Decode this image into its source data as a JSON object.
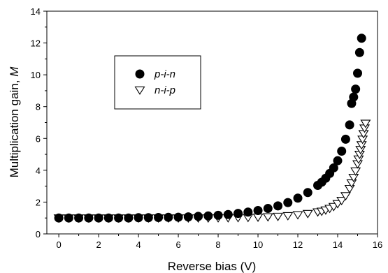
{
  "chart_data": {
    "type": "scatter",
    "title": "",
    "xlabel": "Reverse bias (V)",
    "ylabel_main": "Multiplication gain, ",
    "ylabel_symbol": "M",
    "xlim": [
      -0.6,
      16
    ],
    "ylim": [
      0,
      14
    ],
    "xticks": [
      "0",
      "2",
      "4",
      "6",
      "8",
      "10",
      "12",
      "14",
      "16"
    ],
    "yticks": [
      "0",
      "2",
      "4",
      "6",
      "8",
      "10",
      "12",
      "14"
    ],
    "grid": false,
    "legend_position": "upper-left",
    "series": [
      {
        "name": "p-i-n",
        "marker": "filled-circle",
        "color": "#000000",
        "x": [
          0,
          0.5,
          1,
          1.5,
          2,
          2.5,
          3,
          3.5,
          4,
          4.5,
          5,
          5.5,
          6,
          6.5,
          7,
          7.5,
          8,
          8.5,
          9,
          9.5,
          10,
          10.5,
          11,
          11.5,
          12,
          12.5,
          13,
          13.2,
          13.4,
          13.6,
          13.8,
          14,
          14.2,
          14.4,
          14.6,
          14.7,
          14.8,
          14.9,
          15,
          15.1,
          15.2
        ],
        "y": [
          1.0,
          1.0,
          1.0,
          1.0,
          1.0,
          1.0,
          1.0,
          1.0,
          1.02,
          1.02,
          1.03,
          1.04,
          1.05,
          1.07,
          1.1,
          1.13,
          1.17,
          1.22,
          1.29,
          1.37,
          1.47,
          1.6,
          1.76,
          1.97,
          2.25,
          2.6,
          3.05,
          3.25,
          3.5,
          3.8,
          4.15,
          4.6,
          5.2,
          5.95,
          6.85,
          8.2,
          8.6,
          9.1,
          10.1,
          11.4,
          12.3
        ]
      },
      {
        "name": "n-i-p",
        "marker": "open-triangle-down",
        "color": "#000000",
        "x": [
          0,
          0.5,
          1,
          1.5,
          2,
          2.5,
          3,
          3.5,
          4,
          4.5,
          5,
          5.5,
          6,
          6.5,
          7,
          7.5,
          8,
          8.5,
          9,
          9.5,
          10,
          10.5,
          11,
          11.5,
          12,
          12.5,
          13,
          13.2,
          13.4,
          13.6,
          13.8,
          14,
          14.2,
          14.4,
          14.6,
          14.7,
          14.8,
          14.9,
          15,
          15.05,
          15.1,
          15.15,
          15.2,
          15.25,
          15.3,
          15.35,
          15.4
        ],
        "y": [
          1.0,
          1.0,
          1.0,
          1.0,
          1.0,
          1.0,
          1.0,
          1.0,
          1.0,
          1.0,
          1.0,
          1.0,
          1.0,
          1.0,
          1.0,
          1.0,
          1.01,
          1.01,
          1.02,
          1.03,
          1.05,
          1.07,
          1.1,
          1.14,
          1.2,
          1.28,
          1.38,
          1.42,
          1.5,
          1.6,
          1.72,
          1.9,
          2.1,
          2.4,
          2.85,
          3.2,
          3.55,
          3.95,
          4.4,
          4.7,
          5.0,
          5.3,
          5.6,
          5.95,
          6.3,
          6.65,
          6.95
        ]
      }
    ]
  }
}
